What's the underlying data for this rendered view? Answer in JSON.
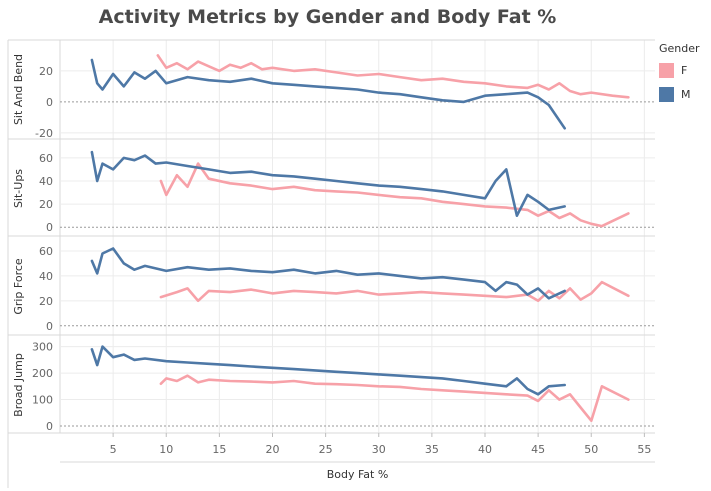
{
  "chart_data": {
    "type": "line",
    "title": "Activity Metrics by Gender and Body Fat %",
    "xlabel": "Body Fat %",
    "xlim": [
      0,
      56
    ],
    "x_ticks": [
      5,
      10,
      15,
      20,
      25,
      30,
      35,
      40,
      45,
      50,
      55
    ],
    "legend": {
      "title": "Gender",
      "position": "right",
      "entries": [
        {
          "name": "F",
          "color": "#f7a1a8"
        },
        {
          "name": "M",
          "color": "#4e78a6"
        }
      ]
    },
    "grid": true,
    "panels": [
      {
        "ylabel": "Sit And Bend",
        "ylim": [
          -22,
          38
        ],
        "y_ticks": [
          -20,
          0,
          20
        ],
        "series": [
          {
            "name": "F",
            "color": "#f7a1a8",
            "x": [
              9.2,
              10,
              11,
              12,
              13,
              14,
              15,
              16,
              17,
              18,
              19,
              20,
              22,
              24,
              26,
              28,
              30,
              32,
              34,
              36,
              38,
              40,
              42,
              44,
              45,
              46,
              47,
              48,
              49,
              50,
              52,
              53.5
            ],
            "y": [
              30,
              22,
              25,
              21,
              26,
              23,
              20,
              24,
              22,
              25,
              21,
              22,
              20,
              21,
              19,
              17,
              18,
              16,
              14,
              15,
              13,
              12,
              10,
              9,
              11,
              8,
              12,
              7,
              5,
              6,
              4,
              3
            ]
          },
          {
            "name": "M",
            "color": "#4e78a6",
            "x": [
              3,
              3.5,
              4,
              5,
              6,
              7,
              8,
              9,
              10,
              12,
              14,
              16,
              18,
              20,
              22,
              24,
              26,
              28,
              30,
              32,
              34,
              36,
              38,
              40,
              42,
              44,
              45,
              46,
              47.5
            ],
            "y": [
              27,
              12,
              8,
              18,
              10,
              19,
              15,
              20,
              12,
              16,
              14,
              13,
              15,
              12,
              11,
              10,
              9,
              8,
              6,
              5,
              3,
              1,
              0,
              4,
              5,
              6,
              3,
              -2,
              -17
            ]
          }
        ]
      },
      {
        "ylabel": "Sit-Ups",
        "ylim": [
          -5,
          72
        ],
        "y_ticks": [
          0,
          20,
          40,
          60
        ],
        "series": [
          {
            "name": "F",
            "color": "#f7a1a8",
            "x": [
              9.5,
              10,
              11,
              12,
              13,
              14,
              16,
              18,
              20,
              22,
              24,
              26,
              28,
              30,
              32,
              34,
              36,
              38,
              40,
              42,
              44,
              45,
              46,
              47,
              48,
              49,
              50,
              51,
              53.5
            ],
            "y": [
              40,
              28,
              45,
              35,
              55,
              42,
              38,
              36,
              33,
              35,
              32,
              31,
              30,
              28,
              26,
              25,
              22,
              20,
              18,
              17,
              15,
              10,
              14,
              8,
              12,
              6,
              3,
              1,
              12
            ]
          },
          {
            "name": "M",
            "color": "#4e78a6",
            "x": [
              3,
              3.5,
              4,
              5,
              6,
              7,
              8,
              9,
              10,
              12,
              14,
              16,
              18,
              20,
              22,
              24,
              26,
              28,
              30,
              32,
              34,
              36,
              38,
              40,
              41,
              42,
              43,
              44,
              45,
              46,
              47.5
            ],
            "y": [
              65,
              40,
              55,
              50,
              60,
              58,
              62,
              55,
              56,
              53,
              50,
              47,
              48,
              45,
              44,
              42,
              40,
              38,
              36,
              35,
              33,
              31,
              28,
              25,
              40,
              50,
              10,
              28,
              22,
              15,
              18
            ]
          }
        ]
      },
      {
        "ylabel": "Grip Force",
        "ylim": [
          -5,
          68
        ],
        "y_ticks": [
          0,
          20,
          40,
          60
        ],
        "series": [
          {
            "name": "F",
            "color": "#f7a1a8",
            "x": [
              9.5,
              11,
              12,
              13,
              14,
              16,
              18,
              20,
              22,
              24,
              26,
              28,
              30,
              32,
              34,
              36,
              38,
              40,
              42,
              44,
              45,
              46,
              47,
              48,
              49,
              50,
              51,
              53.5
            ],
            "y": [
              23,
              27,
              30,
              20,
              28,
              27,
              29,
              26,
              28,
              27,
              26,
              28,
              25,
              26,
              27,
              26,
              25,
              24,
              23,
              25,
              20,
              28,
              22,
              30,
              21,
              26,
              35,
              24
            ]
          },
          {
            "name": "M",
            "color": "#4e78a6",
            "x": [
              3,
              3.5,
              4,
              5,
              6,
              7,
              8,
              10,
              12,
              14,
              16,
              18,
              20,
              22,
              24,
              26,
              28,
              30,
              32,
              34,
              36,
              38,
              40,
              41,
              42,
              43,
              44,
              45,
              46,
              47.5
            ],
            "y": [
              52,
              42,
              58,
              62,
              50,
              45,
              48,
              44,
              47,
              45,
              46,
              44,
              43,
              45,
              42,
              44,
              41,
              42,
              40,
              38,
              39,
              37,
              35,
              28,
              35,
              33,
              25,
              30,
              22,
              28
            ]
          }
        ]
      },
      {
        "ylabel": "Broad Jump",
        "ylim": [
          -15,
          325
        ],
        "y_ticks": [
          0,
          100,
          200,
          300
        ],
        "series": [
          {
            "name": "F",
            "color": "#f7a1a8",
            "x": [
              9.5,
              10,
              11,
              12,
              13,
              14,
              16,
              18,
              20,
              22,
              24,
              26,
              28,
              30,
              32,
              34,
              36,
              38,
              40,
              42,
              44,
              45,
              46,
              47,
              48,
              49,
              50,
              51,
              53.5
            ],
            "y": [
              160,
              180,
              170,
              190,
              165,
              175,
              170,
              168,
              165,
              170,
              160,
              158,
              155,
              150,
              148,
              140,
              135,
              130,
              125,
              120,
              115,
              95,
              135,
              100,
              120,
              70,
              20,
              150,
              100
            ]
          },
          {
            "name": "M",
            "color": "#4e78a6",
            "x": [
              3,
              3.5,
              4,
              5,
              6,
              7,
              8,
              10,
              12,
              14,
              16,
              18,
              20,
              22,
              24,
              26,
              28,
              30,
              32,
              34,
              36,
              38,
              40,
              42,
              43,
              44,
              45,
              46,
              47.5
            ],
            "y": [
              290,
              230,
              300,
              260,
              270,
              250,
              255,
              245,
              240,
              235,
              230,
              225,
              220,
              215,
              210,
              205,
              200,
              195,
              190,
              185,
              180,
              170,
              160,
              150,
              180,
              140,
              120,
              150,
              155
            ]
          }
        ]
      }
    ]
  }
}
